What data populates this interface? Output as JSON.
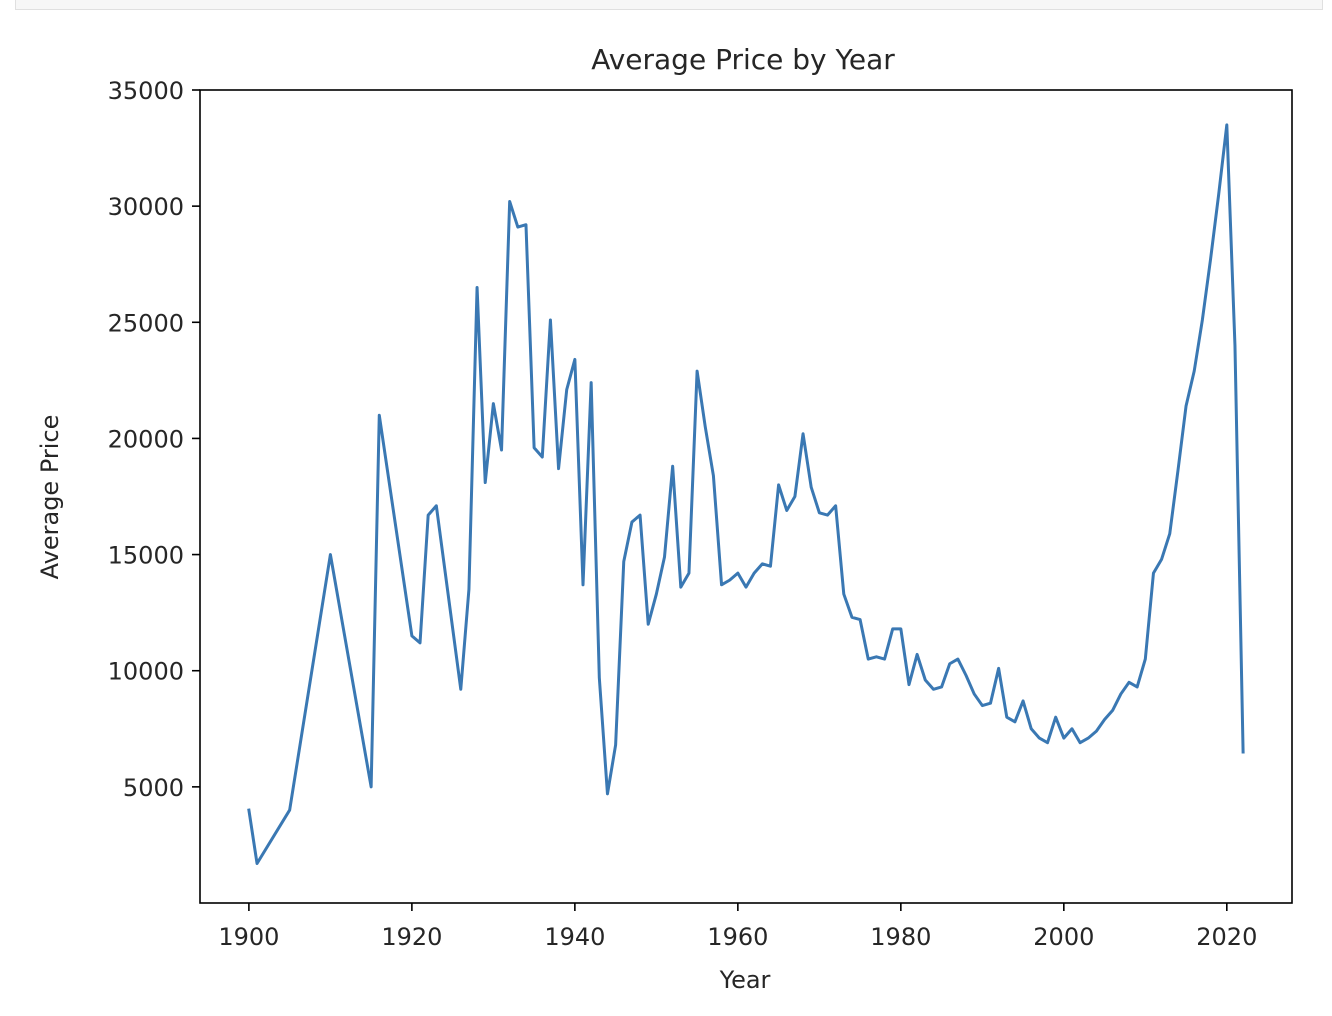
{
  "chart_data": {
    "type": "line",
    "title": "Average Price by Year",
    "xlabel": "Year",
    "ylabel": "Average Price",
    "xlim": [
      1894,
      2028
    ],
    "ylim": [
      0,
      35000
    ],
    "x_ticks": [
      1900,
      1920,
      1940,
      1960,
      1980,
      2000,
      2020
    ],
    "y_ticks": [
      5000,
      10000,
      15000,
      20000,
      25000,
      30000,
      35000
    ],
    "grid": false,
    "line_color": "#3a78b3",
    "series": [
      {
        "x": [
          1900,
          1901,
          1905,
          1910,
          1915,
          1916,
          1920,
          1921,
          1922,
          1923,
          1926,
          1927,
          1928,
          1929,
          1930,
          1931,
          1932,
          1933,
          1934,
          1935,
          1936,
          1937,
          1938,
          1939,
          1940,
          1941,
          1942,
          1943,
          1944,
          1945,
          1946,
          1947,
          1948,
          1949,
          1950,
          1951,
          1952,
          1953,
          1954,
          1955,
          1956,
          1957,
          1958,
          1959,
          1960,
          1961,
          1962,
          1963,
          1964,
          1965,
          1966,
          1967,
          1968,
          1969,
          1970,
          1971,
          1972,
          1973,
          1974,
          1975,
          1976,
          1977,
          1978,
          1979,
          1980,
          1981,
          1982,
          1983,
          1984,
          1985,
          1986,
          1987,
          1988,
          1989,
          1990,
          1991,
          1992,
          1993,
          1994,
          1995,
          1996,
          1997,
          1998,
          1999,
          2000,
          2001,
          2002,
          2003,
          2004,
          2005,
          2006,
          2007,
          2008,
          2009,
          2010,
          2011,
          2012,
          2013,
          2014,
          2015,
          2016,
          2017,
          2018,
          2019,
          2020,
          2021,
          2022
        ],
        "y": [
          4000,
          1700,
          4000,
          15000,
          5000,
          21000,
          11500,
          11200,
          16700,
          17100,
          9200,
          13500,
          26500,
          18100,
          21500,
          19500,
          30200,
          29100,
          29200,
          19600,
          19200,
          25100,
          18700,
          22100,
          23400,
          13700,
          22400,
          9700,
          4700,
          6800,
          14700,
          16400,
          16700,
          12000,
          13300,
          14900,
          18800,
          13600,
          14200,
          22900,
          20500,
          18400,
          13700,
          13900,
          14200,
          13600,
          14200,
          14600,
          14500,
          18000,
          16900,
          17500,
          20200,
          17900,
          16800,
          16700,
          17100,
          13300,
          12300,
          12200,
          10500,
          10600,
          10500,
          11800,
          11800,
          9400,
          10700,
          9600,
          9200,
          9300,
          10300,
          10500,
          9800,
          9000,
          8500,
          8600,
          10100,
          8000,
          7800,
          8700,
          7500,
          7100,
          6900,
          8000,
          7100,
          7500,
          6900,
          7100,
          7400,
          7900,
          8300,
          9000,
          9500,
          9300,
          10500,
          14200,
          14800,
          15900,
          18600,
          21400,
          22900,
          25100,
          27700,
          30500,
          33500,
          24000,
          6500
        ]
      }
    ]
  }
}
